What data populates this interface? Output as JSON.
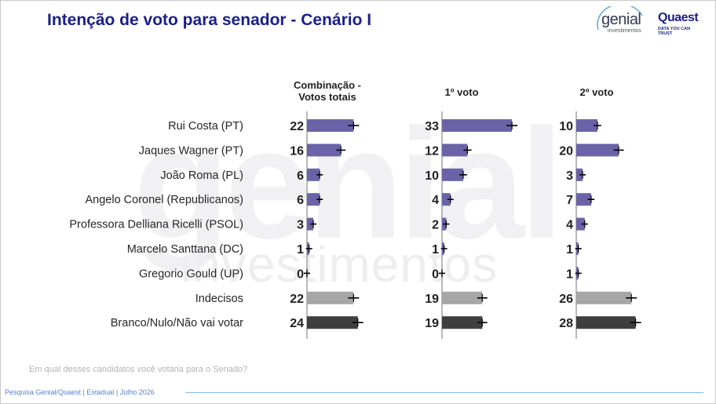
{
  "title": "Intenção de voto para senador - Cenário I",
  "logos": {
    "genial": "genial",
    "genial_sub": "investimentos",
    "quaest": "Quaest",
    "quaest_sub": "DATA YOU CAN TRUST"
  },
  "watermark": {
    "big": "genial",
    "small": "investimentos"
  },
  "question": "Em qual desses candidatos você votaria para o Senado?",
  "footer": "Pesquisa Genial/Quaest | Estadual | Julho 2026",
  "colors": {
    "candidate": "#6b63a8",
    "indecisos": "#a6a6a6",
    "branco": "#3f3f3f",
    "axis": "#b8b8b8",
    "error": "#000000",
    "title": "#1b1f8a"
  },
  "chart_data": {
    "type": "bar",
    "orientation": "horizontal",
    "categories": [
      "Rui Costa (PT)",
      "Jaques Wagner (PT)",
      "João Roma (PL)",
      "Angelo Coronel (Republicanos)",
      "Professora Delliana Ricelli (PSOL)",
      "Marcelo Santtana (DC)",
      "Gregorio Gould (UP)",
      "Indecisos",
      "Branco/Nulo/Não vai votar"
    ],
    "bar_color_keys": [
      "candidate",
      "candidate",
      "candidate",
      "candidate",
      "candidate",
      "candidate",
      "candidate",
      "indecisos",
      "branco"
    ],
    "series": [
      {
        "name": "Combinação - Votos totais",
        "values": [
          22,
          16,
          6,
          6,
          3,
          1,
          0,
          22,
          24
        ]
      },
      {
        "name": "1º voto",
        "values": [
          33,
          12,
          10,
          4,
          2,
          1,
          0,
          19,
          19
        ]
      },
      {
        "name": "2º voto",
        "values": [
          10,
          20,
          3,
          7,
          4,
          1,
          1,
          26,
          28
        ]
      }
    ],
    "error_bars": true,
    "xlim": [
      0,
      33
    ],
    "grid": false,
    "legend": "none"
  }
}
